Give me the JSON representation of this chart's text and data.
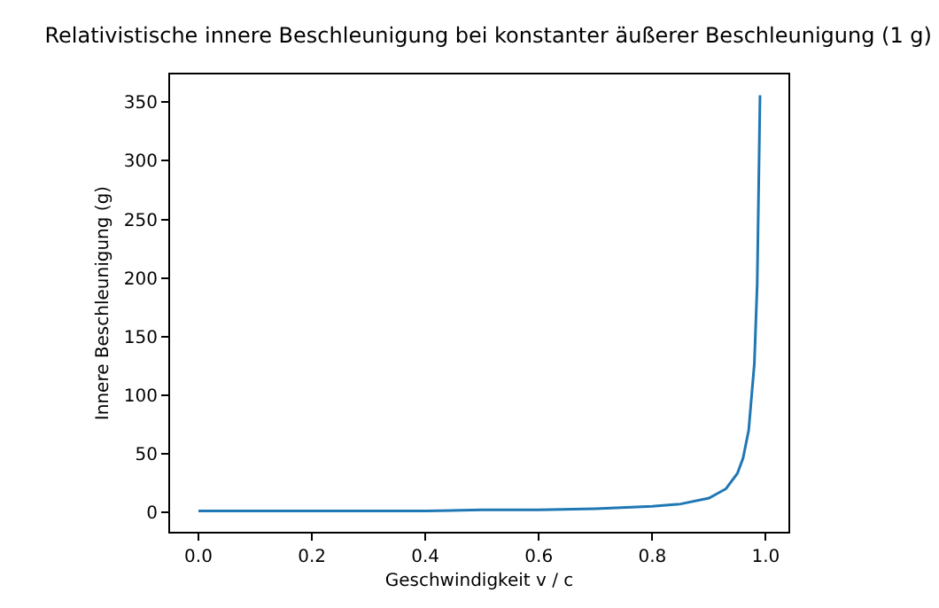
{
  "chart_data": {
    "type": "line",
    "title": "Relativistische innere Beschleunigung bei konstanter äußerer Beschleunigung (1 g)",
    "xlabel": "Geschwindigkeit v / c",
    "ylabel": "Innere Beschleunigung (g)",
    "x": [
      0,
      0.2,
      0.4,
      0.5,
      0.6,
      0.7,
      0.8,
      0.85,
      0.9,
      0.93,
      0.95,
      0.96,
      0.97,
      0.98,
      0.985,
      0.99
    ],
    "series": [
      {
        "color": "#1f77b4",
        "values": [
          1,
          1,
          1,
          2,
          2,
          3,
          5,
          7,
          12,
          20,
          33,
          46,
          70,
          127,
          195,
          356
        ]
      }
    ],
    "xlim": [
      -0.05,
      1.04
    ],
    "ylim": [
      -16.75,
      373.75
    ],
    "xticks": [
      {
        "value": 0,
        "label": "0.0"
      },
      {
        "value": 0.2,
        "label": "0.2"
      },
      {
        "value": 0.4,
        "label": "0.4"
      },
      {
        "value": 0.6,
        "label": "0.6"
      },
      {
        "value": 0.8,
        "label": "0.8"
      },
      {
        "value": 1,
        "label": "1.0"
      }
    ],
    "yticks": [
      0,
      50,
      100,
      150,
      200,
      250,
      300,
      350
    ],
    "marker": "none",
    "line_style": "solid"
  }
}
